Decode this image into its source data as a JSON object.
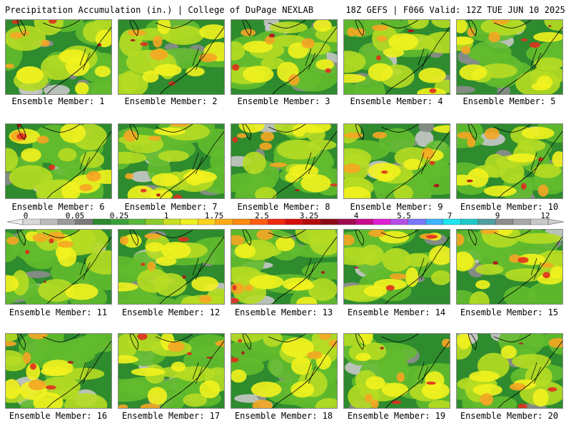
{
  "header": {
    "left": "Precipitation Accumulation (in.) | College of DuPage NEXLAB",
    "right": "18Z GEFS | F066 Valid: 12Z TUE JUN 10 2025"
  },
  "panels": [
    {
      "label": "Ensemble Member: 1"
    },
    {
      "label": "Ensemble Member: 2"
    },
    {
      "label": "Ensemble Member: 3"
    },
    {
      "label": "Ensemble Member: 4"
    },
    {
      "label": "Ensemble Member: 5"
    },
    {
      "label": "Ensemble Member: 6"
    },
    {
      "label": "Ensemble Member: 7"
    },
    {
      "label": "Ensemble Member: 8"
    },
    {
      "label": "Ensemble Member: 9"
    },
    {
      "label": "Ensemble Member: 10"
    },
    {
      "label": "Ensemble Member: 11"
    },
    {
      "label": "Ensemble Member: 12"
    },
    {
      "label": "Ensemble Member: 13"
    },
    {
      "label": "Ensemble Member: 14"
    },
    {
      "label": "Ensemble Member: 15"
    },
    {
      "label": "Ensemble Member: 16"
    },
    {
      "label": "Ensemble Member: 17"
    },
    {
      "label": "Ensemble Member: 18"
    },
    {
      "label": "Ensemble Member: 19"
    },
    {
      "label": "Ensemble Member: 20"
    }
  ],
  "colorbar": {
    "tick_labels": [
      "0",
      "0.05",
      "0.25",
      "1",
      "1.75",
      "2.5",
      "3.25",
      "4",
      "5.5",
      "7",
      "9",
      "12"
    ],
    "colors": [
      "#d8d8d8",
      "#bdbdbd",
      "#9a9a9a",
      "#7a7a7a",
      "#2d8a2d",
      "#3aa03a",
      "#58b83a",
      "#8ccc2a",
      "#c8e020",
      "#f0f020",
      "#ffd21e",
      "#ffaa14",
      "#ff8a10",
      "#ff5a10",
      "#f02810",
      "#d80c0c",
      "#b40a0a",
      "#8c0a14",
      "#a00a50",
      "#c80a8c",
      "#e01ed2",
      "#b450e6",
      "#7878ff",
      "#3cb4ff",
      "#1ee6f0",
      "#1ec8c8",
      "#50a0a0",
      "#8c8c8c",
      "#a8a8a8",
      "#c8c8c8"
    ]
  },
  "map_colors": {
    "background": "#2e8b2e",
    "light_green": "#63bb2e",
    "yellow_green": "#b6dc22",
    "yellow": "#f2f21e",
    "orange": "#f5a623",
    "red": "#e0301e",
    "dark_red": "#b0101a",
    "gray": "#8c8c8c",
    "light_gray": "#c8c8c8",
    "outline": "#000000"
  }
}
